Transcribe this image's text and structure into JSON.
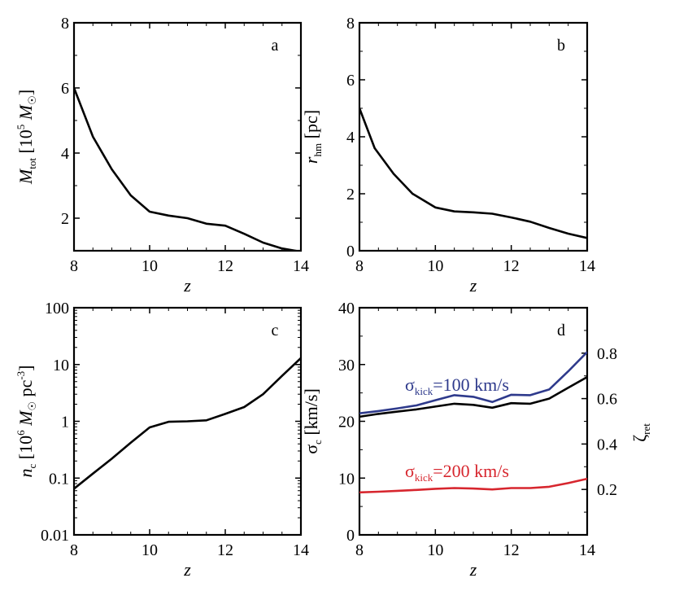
{
  "chart_data": [
    {
      "panel": "a",
      "type": "line",
      "panel_label": "a",
      "xlabel": "z",
      "ylabel": {
        "main": "M",
        "sub": "tot",
        "rest": " [10",
        "sup": "5",
        "unit": "M",
        "unit_sub": "☉",
        "close": "]"
      },
      "xlim": [
        8,
        14
      ],
      "ylim": [
        1,
        8
      ],
      "xticks": [
        "8",
        "10",
        "12",
        "14"
      ],
      "yticks": [
        "2",
        "4",
        "6",
        "8"
      ],
      "series": [
        {
          "color": "#000000",
          "x": [
            8,
            8.5,
            9,
            9.5,
            10,
            10.5,
            11,
            11.5,
            12,
            12.5,
            13,
            13.5,
            14
          ],
          "y": [
            6.0,
            4.5,
            3.5,
            2.7,
            2.2,
            2.08,
            2.0,
            1.83,
            1.77,
            1.52,
            1.25,
            1.07,
            0.97
          ]
        }
      ]
    },
    {
      "panel": "b",
      "type": "line",
      "panel_label": "b",
      "xlabel": "z",
      "ylabel": {
        "main": "r",
        "sub": "hm",
        "rest": " [pc]"
      },
      "xlim": [
        8,
        14
      ],
      "ylim": [
        0,
        8
      ],
      "xticks": [
        "8",
        "10",
        "12",
        "14"
      ],
      "yticks": [
        "0",
        "2",
        "4",
        "6",
        "8"
      ],
      "series": [
        {
          "color": "#000000",
          "x": [
            8,
            8.4,
            8.9,
            9.4,
            10,
            10.5,
            11,
            11.5,
            12,
            12.5,
            13,
            13.5,
            14
          ],
          "y": [
            5.0,
            3.6,
            2.7,
            2.0,
            1.52,
            1.38,
            1.35,
            1.3,
            1.17,
            1.02,
            0.8,
            0.6,
            0.45
          ]
        }
      ]
    },
    {
      "panel": "c",
      "type": "line",
      "panel_label": "c",
      "xlabel": "z",
      "ylabel": {
        "main": "n",
        "sub": "c",
        "rest": " [10",
        "sup": "6",
        "unit": "M",
        "unit_sub": "☉",
        "tail": " pc",
        "tail_sup": "-3",
        "close": "]"
      },
      "yscale": "log",
      "xlim": [
        8,
        14
      ],
      "ylim": [
        0.01,
        100
      ],
      "xticks": [
        "8",
        "10",
        "12",
        "14"
      ],
      "yticks": [
        "0.01",
        "0.1",
        "1",
        "10",
        "100"
      ],
      "series": [
        {
          "color": "#000000",
          "x": [
            8,
            8.5,
            9,
            9.5,
            10,
            10.5,
            11,
            11.5,
            12,
            12.5,
            13,
            13.5,
            14
          ],
          "y": [
            0.065,
            0.12,
            0.22,
            0.42,
            0.78,
            0.98,
            1.0,
            1.04,
            1.35,
            1.78,
            3.0,
            6.3,
            13.0
          ]
        }
      ]
    },
    {
      "panel": "d",
      "type": "line",
      "panel_label": "d",
      "xlabel": "z",
      "ylabel": {
        "main": "σ",
        "sub": "c",
        "rest": " [km/s]"
      },
      "y2label": {
        "main": "ζ",
        "sub": "ret"
      },
      "xlim": [
        8,
        14
      ],
      "ylim": [
        0,
        40
      ],
      "y2lim": [
        0,
        1
      ],
      "xticks": [
        "8",
        "10",
        "12",
        "14"
      ],
      "yticks": [
        "0",
        "10",
        "20",
        "30",
        "40"
      ],
      "y2ticks": [
        "0.2",
        "0.4",
        "0.6",
        "0.8"
      ],
      "series": [
        {
          "color": "#000000",
          "axis": "left",
          "x": [
            8,
            8.5,
            9,
            9.5,
            10,
            10.5,
            11,
            11.5,
            12,
            12.5,
            13,
            13.5,
            14
          ],
          "y": [
            20.8,
            21.3,
            21.7,
            22.1,
            22.6,
            23.1,
            22.9,
            22.4,
            23.2,
            23.1,
            24.0,
            25.9,
            27.8
          ]
        },
        {
          "name": "σ_kick=100 km/s",
          "color": "#2e3a8c",
          "axis": "right",
          "x": [
            8,
            8.5,
            9,
            9.5,
            10,
            10.5,
            11,
            11.5,
            12,
            12.5,
            13,
            13.5,
            14
          ],
          "y": [
            0.535,
            0.545,
            0.557,
            0.57,
            0.593,
            0.615,
            0.608,
            0.585,
            0.617,
            0.615,
            0.64,
            0.72,
            0.805
          ]
        },
        {
          "name": "σ_kick=200 km/s",
          "color": "#d7262e",
          "axis": "right",
          "x": [
            8,
            8.5,
            9,
            9.5,
            10,
            10.5,
            11,
            11.5,
            12,
            12.5,
            13,
            13.5,
            14
          ],
          "y": [
            0.187,
            0.19,
            0.194,
            0.198,
            0.203,
            0.206,
            0.204,
            0.2,
            0.206,
            0.206,
            0.212,
            0.228,
            0.247
          ]
        }
      ],
      "annotations": [
        {
          "color": "#2e3a8c",
          "main": "σ",
          "sub": "kick",
          "rest": "=100 km/s"
        },
        {
          "color": "#d7262e",
          "main": "σ",
          "sub": "kick",
          "rest": "=200 km/s"
        }
      ]
    }
  ]
}
